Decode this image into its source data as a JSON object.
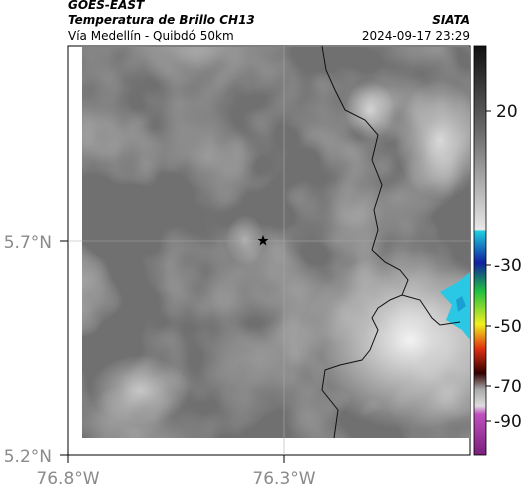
{
  "header": {
    "source": "GOES-EAST",
    "product": "Temperatura de Brillo CH13",
    "region": "Vía Medellín - Quibdó 50km",
    "agency": "SIATA",
    "datetime": "2024-09-17 23:29"
  },
  "axes": {
    "lat_labels": [
      "5.7°N",
      "5.2°N"
    ],
    "lon_labels": [
      "76.8°W",
      "76.3°W"
    ]
  },
  "colorbar": {
    "labels": [
      "20",
      "-30",
      "-50",
      "-70",
      "-90"
    ]
  }
}
